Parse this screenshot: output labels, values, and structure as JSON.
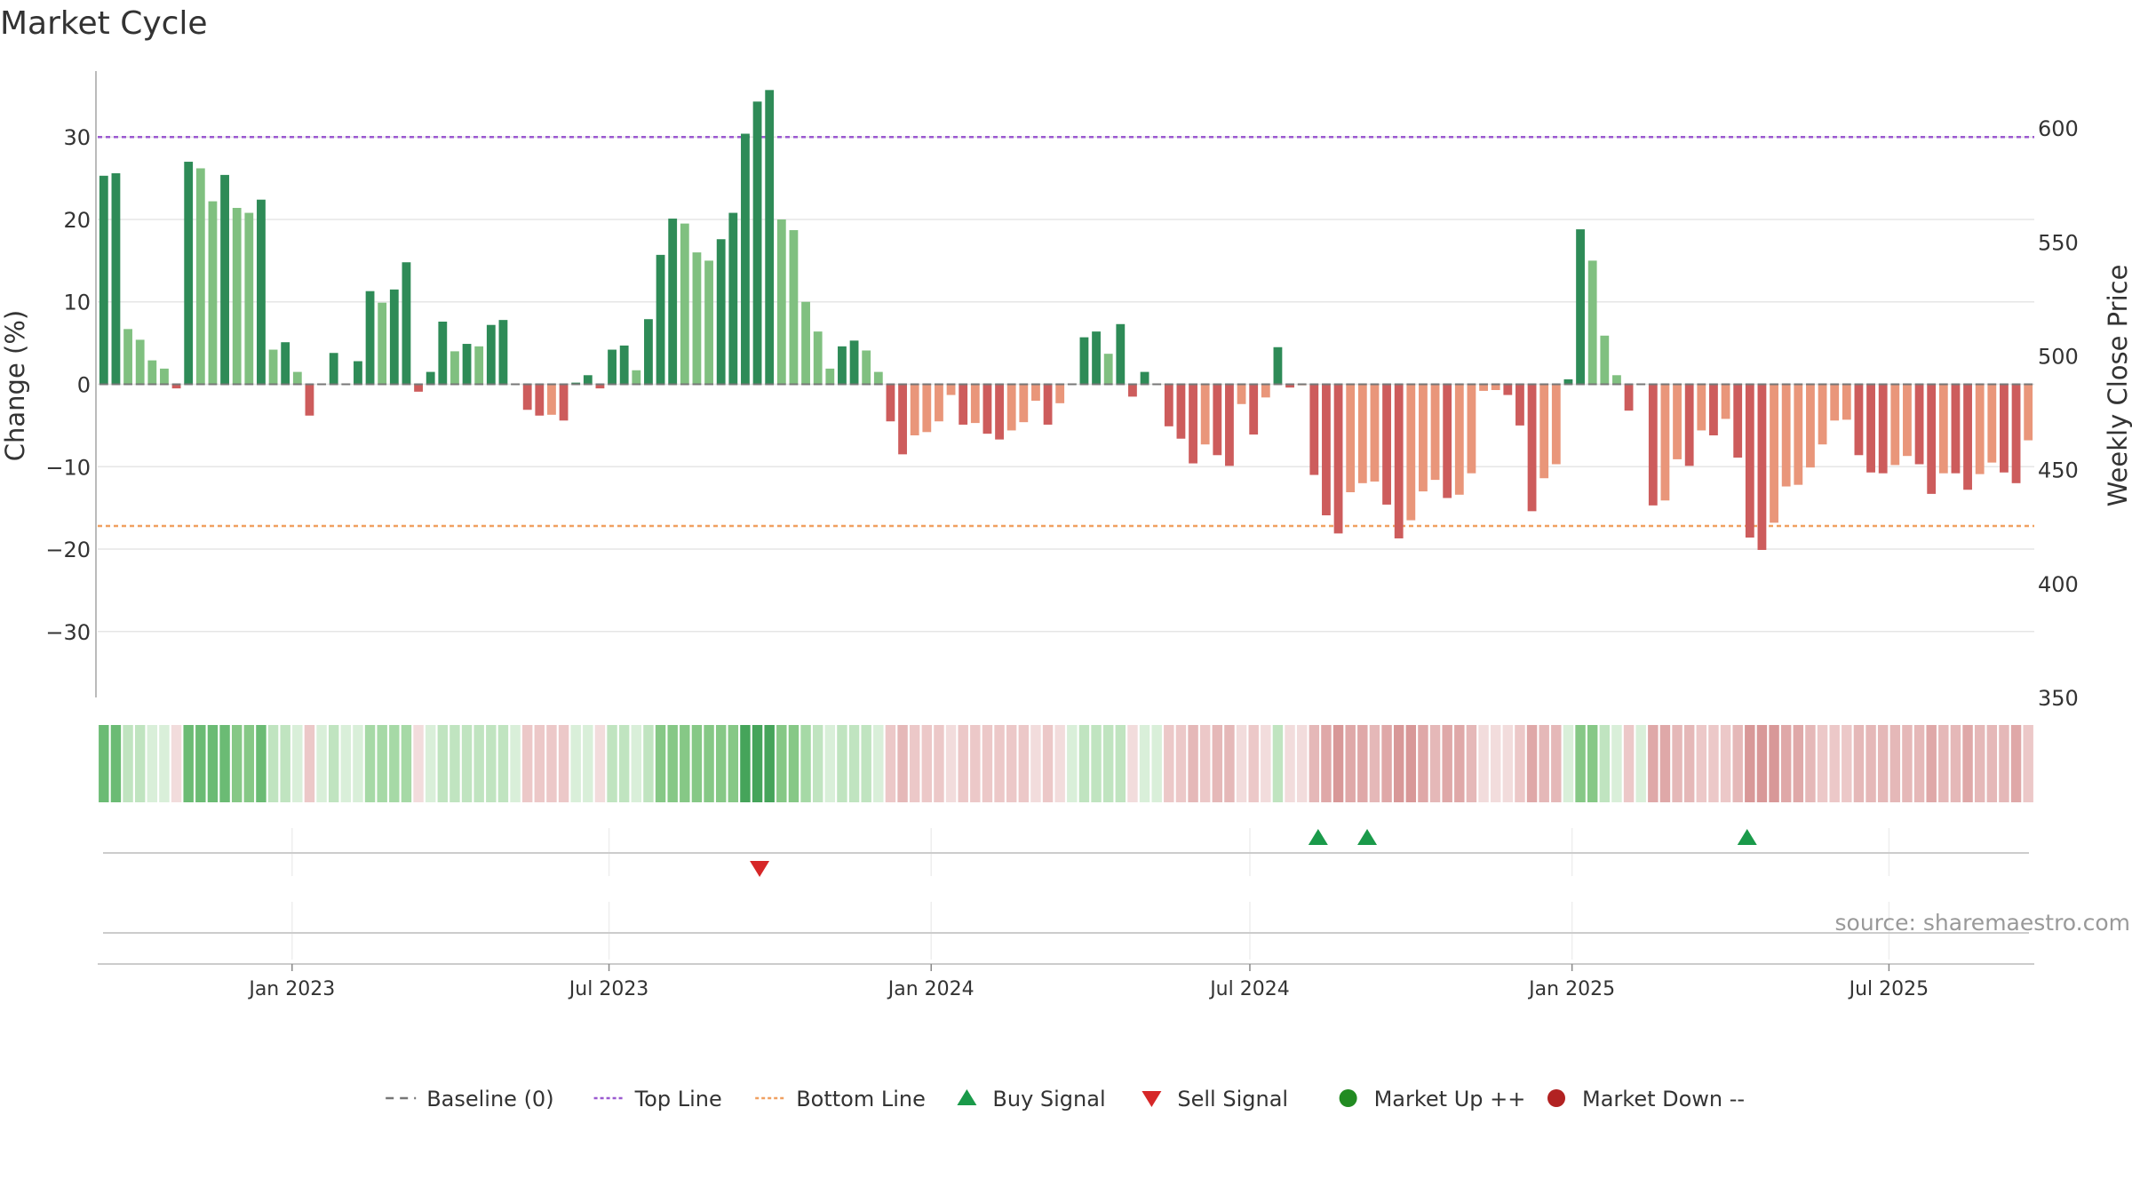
{
  "title": "Market Cycle",
  "source_note": "source: sharemaestro.com",
  "colors": {
    "up_strong": "#2e8b57",
    "up_light": "#80c080",
    "down_strong": "#cd5c5c",
    "down_light": "#e9967a",
    "top_line": "#9b59d0",
    "bottom_line": "#f0a060",
    "baseline": "#777777",
    "buy": "#1a9a4a",
    "sell": "#d62728",
    "market_up": "#228b22",
    "market_down": "#b22222",
    "grid": "#e6e6e6",
    "text": "#333333"
  },
  "legend": [
    {
      "label": "Baseline (0)",
      "symbol": "dash"
    },
    {
      "label": "Top Line",
      "symbol": "dot-purple"
    },
    {
      "label": "Bottom Line",
      "symbol": "dot-orange"
    },
    {
      "label": "Buy Signal",
      "symbol": "triangle-up"
    },
    {
      "label": "Sell Signal",
      "symbol": "triangle-down"
    },
    {
      "label": "Market Up ++",
      "symbol": "circle-green"
    },
    {
      "label": "Market Down --",
      "symbol": "circle-red"
    }
  ],
  "chart_data": {
    "type": "bar",
    "ylabel": "Change (%)",
    "y2label": "Weekly Close Price",
    "ylim": [
      -38,
      38
    ],
    "y2lim": [
      350,
      625
    ],
    "yticks": [
      30,
      20,
      10,
      0,
      -10,
      -20,
      -30
    ],
    "yticklabels": [
      "30",
      "20",
      "10",
      "0",
      "−10",
      "−20",
      "−30"
    ],
    "y2ticks": [
      600,
      550,
      500,
      450,
      400,
      350
    ],
    "top_line": 30,
    "bottom_line": -17.2,
    "x_start": "2022-09-12",
    "x_end": "2025-09-22",
    "xticks": [
      {
        "date": "2023-01-01",
        "label": "Jan 2023"
      },
      {
        "date": "2023-07-01",
        "label": "Jul 2023"
      },
      {
        "date": "2024-01-01",
        "label": "Jan 2024"
      },
      {
        "date": "2024-07-01",
        "label": "Jul 2024"
      },
      {
        "date": "2025-01-01",
        "label": "Jan 2025"
      },
      {
        "date": "2025-07-01",
        "label": "Jul 2025"
      }
    ],
    "values": [
      25.3,
      25.6,
      6.7,
      5.4,
      2.9,
      1.9,
      -0.5,
      27,
      26.2,
      22.2,
      25.4,
      21.4,
      20.8,
      22.4,
      4.2,
      5.1,
      1.5,
      -3.8,
      0.1,
      3.8,
      0.1,
      2.8,
      11.3,
      9.9,
      11.5,
      14.8,
      -0.9,
      1.5,
      7.6,
      4,
      4.9,
      4.6,
      7.2,
      7.8,
      0.1,
      -3.1,
      -3.8,
      -3.7,
      -4.4,
      0.2,
      1.1,
      -0.5,
      4.2,
      4.7,
      1.7,
      7.9,
      15.7,
      20.1,
      19.5,
      16,
      15,
      17.6,
      20.8,
      30.4,
      34.3,
      35.7,
      20,
      18.7,
      10,
      6.4,
      1.9,
      4.6,
      5.3,
      4.1,
      1.5,
      -4.5,
      -8.5,
      -6.2,
      -5.8,
      -4.5,
      -1.3,
      -4.9,
      -4.7,
      -6,
      -6.7,
      -5.6,
      -4.6,
      -2,
      -4.9,
      -2.3,
      0.1,
      5.7,
      6.4,
      3.7,
      7.3,
      -1.5,
      1.5,
      0.1,
      -5.1,
      -6.6,
      -9.6,
      -7.3,
      -8.6,
      -9.9,
      -2.4,
      -6.1,
      -1.6,
      4.5,
      -0.4,
      -0.1,
      -11,
      -15.9,
      -18.1,
      -13.1,
      -12,
      -11.8,
      -14.6,
      -18.7,
      -16.5,
      -13,
      -11.6,
      -13.8,
      -13.4,
      -10.8,
      -0.8,
      -0.7,
      -1.3,
      -5,
      -15.4,
      -11.4,
      -9.7,
      0.6,
      18.8,
      15,
      5.9,
      1.1,
      -3.2,
      0.1,
      -14.7,
      -14.1,
      -9.1,
      -9.9,
      -5.6,
      -6.2,
      -4.2,
      -8.9,
      -18.6,
      -20.1,
      -16.8,
      -12.4,
      -12.2,
      -10.1,
      -7.3,
      -4.4,
      -4.3,
      -8.6,
      -10.7,
      -10.8,
      -9.8,
      -8.7,
      -9.7,
      -13.3,
      -10.8,
      -10.8,
      -12.8,
      -10.9,
      -9.5,
      -10.7,
      -12,
      -6.8
    ],
    "buy_signals": [
      "2024-08-09",
      "2024-09-06",
      "2025-04-11"
    ],
    "sell_signals": [
      "2023-09-25"
    ],
    "market_up": [],
    "market_down": []
  }
}
